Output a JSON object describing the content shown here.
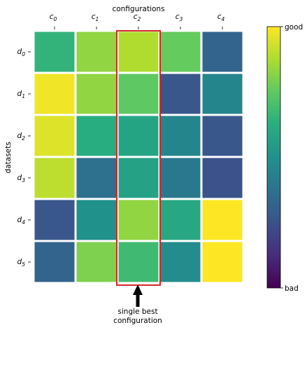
{
  "chart_data": {
    "type": "heatmap",
    "xlabel": "configurations",
    "ylabel": "datasets",
    "x_ticks": [
      {
        "base": "c",
        "sub": "0"
      },
      {
        "base": "c",
        "sub": "1"
      },
      {
        "base": "c",
        "sub": "2"
      },
      {
        "base": "c",
        "sub": "3"
      },
      {
        "base": "c",
        "sub": "4"
      }
    ],
    "y_ticks": [
      {
        "base": "d",
        "sub": "0"
      },
      {
        "base": "d",
        "sub": "1"
      },
      {
        "base": "d",
        "sub": "2"
      },
      {
        "base": "d",
        "sub": "3"
      },
      {
        "base": "d",
        "sub": "4"
      },
      {
        "base": "d",
        "sub": "5"
      }
    ],
    "values": [
      [
        0.65,
        0.83,
        0.88,
        0.76,
        0.32
      ],
      [
        0.98,
        0.83,
        0.75,
        0.27,
        0.45
      ],
      [
        0.95,
        0.62,
        0.58,
        0.45,
        0.27
      ],
      [
        0.9,
        0.37,
        0.57,
        0.4,
        0.25
      ],
      [
        0.27,
        0.5,
        0.83,
        0.6,
        1.0
      ],
      [
        0.32,
        0.8,
        0.68,
        0.48,
        1.0
      ]
    ],
    "colormap": "viridis",
    "value_range": [
      0,
      1
    ],
    "colorbar": {
      "top_label": "good",
      "bottom_label": "bad"
    },
    "highlight": {
      "column": 2,
      "color": "#d62728"
    },
    "annotation": {
      "line1": "single best",
      "line2": "configuration",
      "points_to_column": 2
    }
  }
}
